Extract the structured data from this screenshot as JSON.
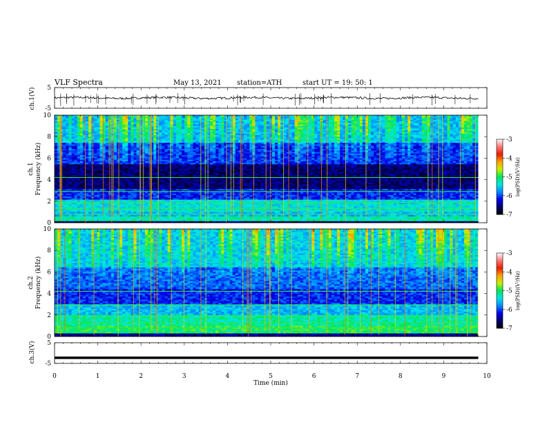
{
  "header": {
    "title": "VLF  Spectra",
    "date": "May 13, 2021",
    "station": "station=ATH",
    "start": "start  UT  =    19: 50: 1"
  },
  "chart_data": [
    {
      "type": "line",
      "name": "ch1-waveform",
      "ylabel": "ch.1(V)",
      "ylim": [
        -5,
        5
      ],
      "yticks": [
        "5",
        "-5"
      ],
      "xlim": [
        0,
        10
      ],
      "data_extent_min": 9.8,
      "baseline_v": 0.0,
      "jitter_v": 0.5,
      "spike_count": 40,
      "line_color": "#000000"
    },
    {
      "type": "heatmap",
      "name": "ch1-spectrogram",
      "ylabel": "ch.1 Frequency (kHz)",
      "ylim": [
        0,
        10
      ],
      "yticks": [
        "0",
        "2",
        "4",
        "6",
        "8",
        "10"
      ],
      "xlim": [
        0,
        10
      ],
      "data_extent_min": 9.8,
      "colorbar": {
        "label": "log(PSD)(V²/Hz)",
        "range": [
          -7,
          -3
        ],
        "ticks": [
          "-3",
          "-4",
          "-5",
          "-6",
          "-7"
        ]
      },
      "bands_khz": [
        {
          "from": 0.0,
          "to": 0.2,
          "level": -6.6
        },
        {
          "from": 0.2,
          "to": 0.6,
          "level": -5.2
        },
        {
          "from": 0.6,
          "to": 1.0,
          "level": -5.6
        },
        {
          "from": 1.0,
          "to": 2.2,
          "level": -5.4
        },
        {
          "from": 2.2,
          "to": 3.2,
          "level": -6.1
        },
        {
          "from": 3.2,
          "to": 5.5,
          "level": -6.6
        },
        {
          "from": 5.5,
          "to": 7.5,
          "level": -6.1
        },
        {
          "from": 7.5,
          "to": 10.0,
          "level": -5.6
        }
      ],
      "burst_level": -4.6
    },
    {
      "type": "heatmap",
      "name": "ch2-spectrogram",
      "ylabel": "ch.2 Frequency (kHz)",
      "ylim": [
        0,
        10
      ],
      "yticks": [
        "0",
        "2",
        "4",
        "6",
        "8",
        "10"
      ],
      "xlim": [
        0,
        10
      ],
      "data_extent_min": 9.8,
      "colorbar": {
        "label": "log(PSD)(V²/Hz)",
        "range": [
          -7,
          -3
        ],
        "ticks": [
          "-3",
          "-4",
          "-5",
          "-6",
          "-7"
        ]
      },
      "bands_khz": [
        {
          "from": 0.0,
          "to": 0.3,
          "level": -6.5
        },
        {
          "from": 0.3,
          "to": 1.0,
          "level": -5.0
        },
        {
          "from": 1.0,
          "to": 2.0,
          "level": -5.2
        },
        {
          "from": 2.0,
          "to": 3.0,
          "level": -5.6
        },
        {
          "from": 3.0,
          "to": 4.5,
          "level": -6.1
        },
        {
          "from": 4.5,
          "to": 6.5,
          "level": -5.9
        },
        {
          "from": 6.5,
          "to": 10.0,
          "level": -5.5
        }
      ],
      "burst_level": -4.6
    },
    {
      "type": "line",
      "name": "ch3-waveform",
      "ylabel": "ch.3(V)",
      "ylim": [
        -5,
        5
      ],
      "yticks": [
        "5",
        "-5"
      ],
      "xlim": [
        0,
        10
      ],
      "data_extent_min": 9.8,
      "baseline_v": -2.3,
      "line_color": "#000000"
    }
  ],
  "xaxis": {
    "label": "Time  (min)",
    "ticks": [
      "0",
      "1",
      "2",
      "3",
      "4",
      "5",
      "6",
      "7",
      "8",
      "9",
      "10"
    ]
  }
}
